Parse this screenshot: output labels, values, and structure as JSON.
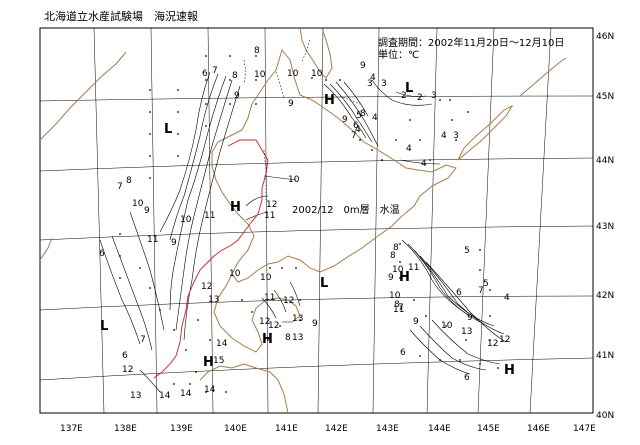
{
  "header": {
    "org_title": "北海道立水産試験場　海況速報",
    "survey_period": "調査期間：2002年11月20日～12月10日",
    "unit": "単位：℃"
  },
  "map": {
    "title": "2002/12　0m層　水温",
    "lon_labels": [
      "137E",
      "138E",
      "139E",
      "140E",
      "141E",
      "142E",
      "143E",
      "144E",
      "145E",
      "146E",
      "147E"
    ],
    "lat_labels": [
      "46N",
      "45N",
      "44N",
      "43N",
      "42N",
      "41N",
      "40N"
    ],
    "pressure_marks": [
      {
        "label": "L",
        "id": "l-west-upper"
      },
      {
        "label": "L",
        "id": "l-west-lower"
      },
      {
        "label": "L",
        "id": "l-east-north"
      },
      {
        "label": "L",
        "id": "l-central-south"
      },
      {
        "label": "H",
        "id": "h-central"
      },
      {
        "label": "H",
        "id": "h-okhotsk"
      },
      {
        "label": "H",
        "id": "h-east-south"
      },
      {
        "label": "H",
        "id": "h-tsugaru-west"
      },
      {
        "label": "H",
        "id": "h-tsugaru"
      },
      {
        "label": "H",
        "id": "h-southeast"
      }
    ],
    "isotherm_labels": [
      {
        "text": "6"
      },
      {
        "text": "7"
      },
      {
        "text": "8"
      },
      {
        "text": "9"
      },
      {
        "text": "10"
      },
      {
        "text": "8"
      },
      {
        "text": "10"
      },
      {
        "text": "9"
      },
      {
        "text": "10"
      },
      {
        "text": "11"
      },
      {
        "text": "12"
      },
      {
        "text": "11"
      },
      {
        "text": "10"
      },
      {
        "text": "9"
      },
      {
        "text": "6"
      },
      {
        "text": "7"
      },
      {
        "text": "8"
      },
      {
        "text": "9"
      },
      {
        "text": "10"
      },
      {
        "text": "11"
      },
      {
        "text": "12"
      },
      {
        "text": "13"
      },
      {
        "text": "14"
      },
      {
        "text": "15"
      },
      {
        "text": "6"
      },
      {
        "text": "7"
      },
      {
        "text": "12"
      },
      {
        "text": "13"
      },
      {
        "text": "14"
      },
      {
        "text": "14"
      },
      {
        "text": "14"
      },
      {
        "text": "10"
      },
      {
        "text": "10"
      },
      {
        "text": "12"
      },
      {
        "text": "11"
      },
      {
        "text": "12"
      },
      {
        "text": "13"
      },
      {
        "text": "9"
      },
      {
        "text": "8"
      },
      {
        "text": "13"
      },
      {
        "text": "12"
      },
      {
        "text": "9"
      },
      {
        "text": "4"
      },
      {
        "text": "4"
      },
      {
        "text": "3"
      },
      {
        "text": "2"
      },
      {
        "text": "2"
      },
      {
        "text": "3"
      },
      {
        "text": "4"
      },
      {
        "text": "5"
      },
      {
        "text": "6"
      },
      {
        "text": "7"
      },
      {
        "text": "8"
      },
      {
        "text": "9"
      },
      {
        "text": "10"
      },
      {
        "text": "3"
      },
      {
        "text": "4"
      },
      {
        "text": "4"
      },
      {
        "text": "3"
      },
      {
        "text": "4"
      },
      {
        "text": "8"
      },
      {
        "text": "9"
      },
      {
        "text": "10"
      },
      {
        "text": "11"
      },
      {
        "text": "8"
      },
      {
        "text": "7"
      },
      {
        "text": "5"
      },
      {
        "text": "6"
      },
      {
        "text": "7"
      },
      {
        "text": "5"
      },
      {
        "text": "4"
      },
      {
        "text": "10"
      },
      {
        "text": "11"
      },
      {
        "text": "12"
      },
      {
        "text": "13"
      },
      {
        "text": "9"
      },
      {
        "text": "6"
      },
      {
        "text": "6"
      },
      {
        "text": "8"
      },
      {
        "text": "9"
      },
      {
        "text": "10"
      },
      {
        "text": "12"
      }
    ]
  }
}
